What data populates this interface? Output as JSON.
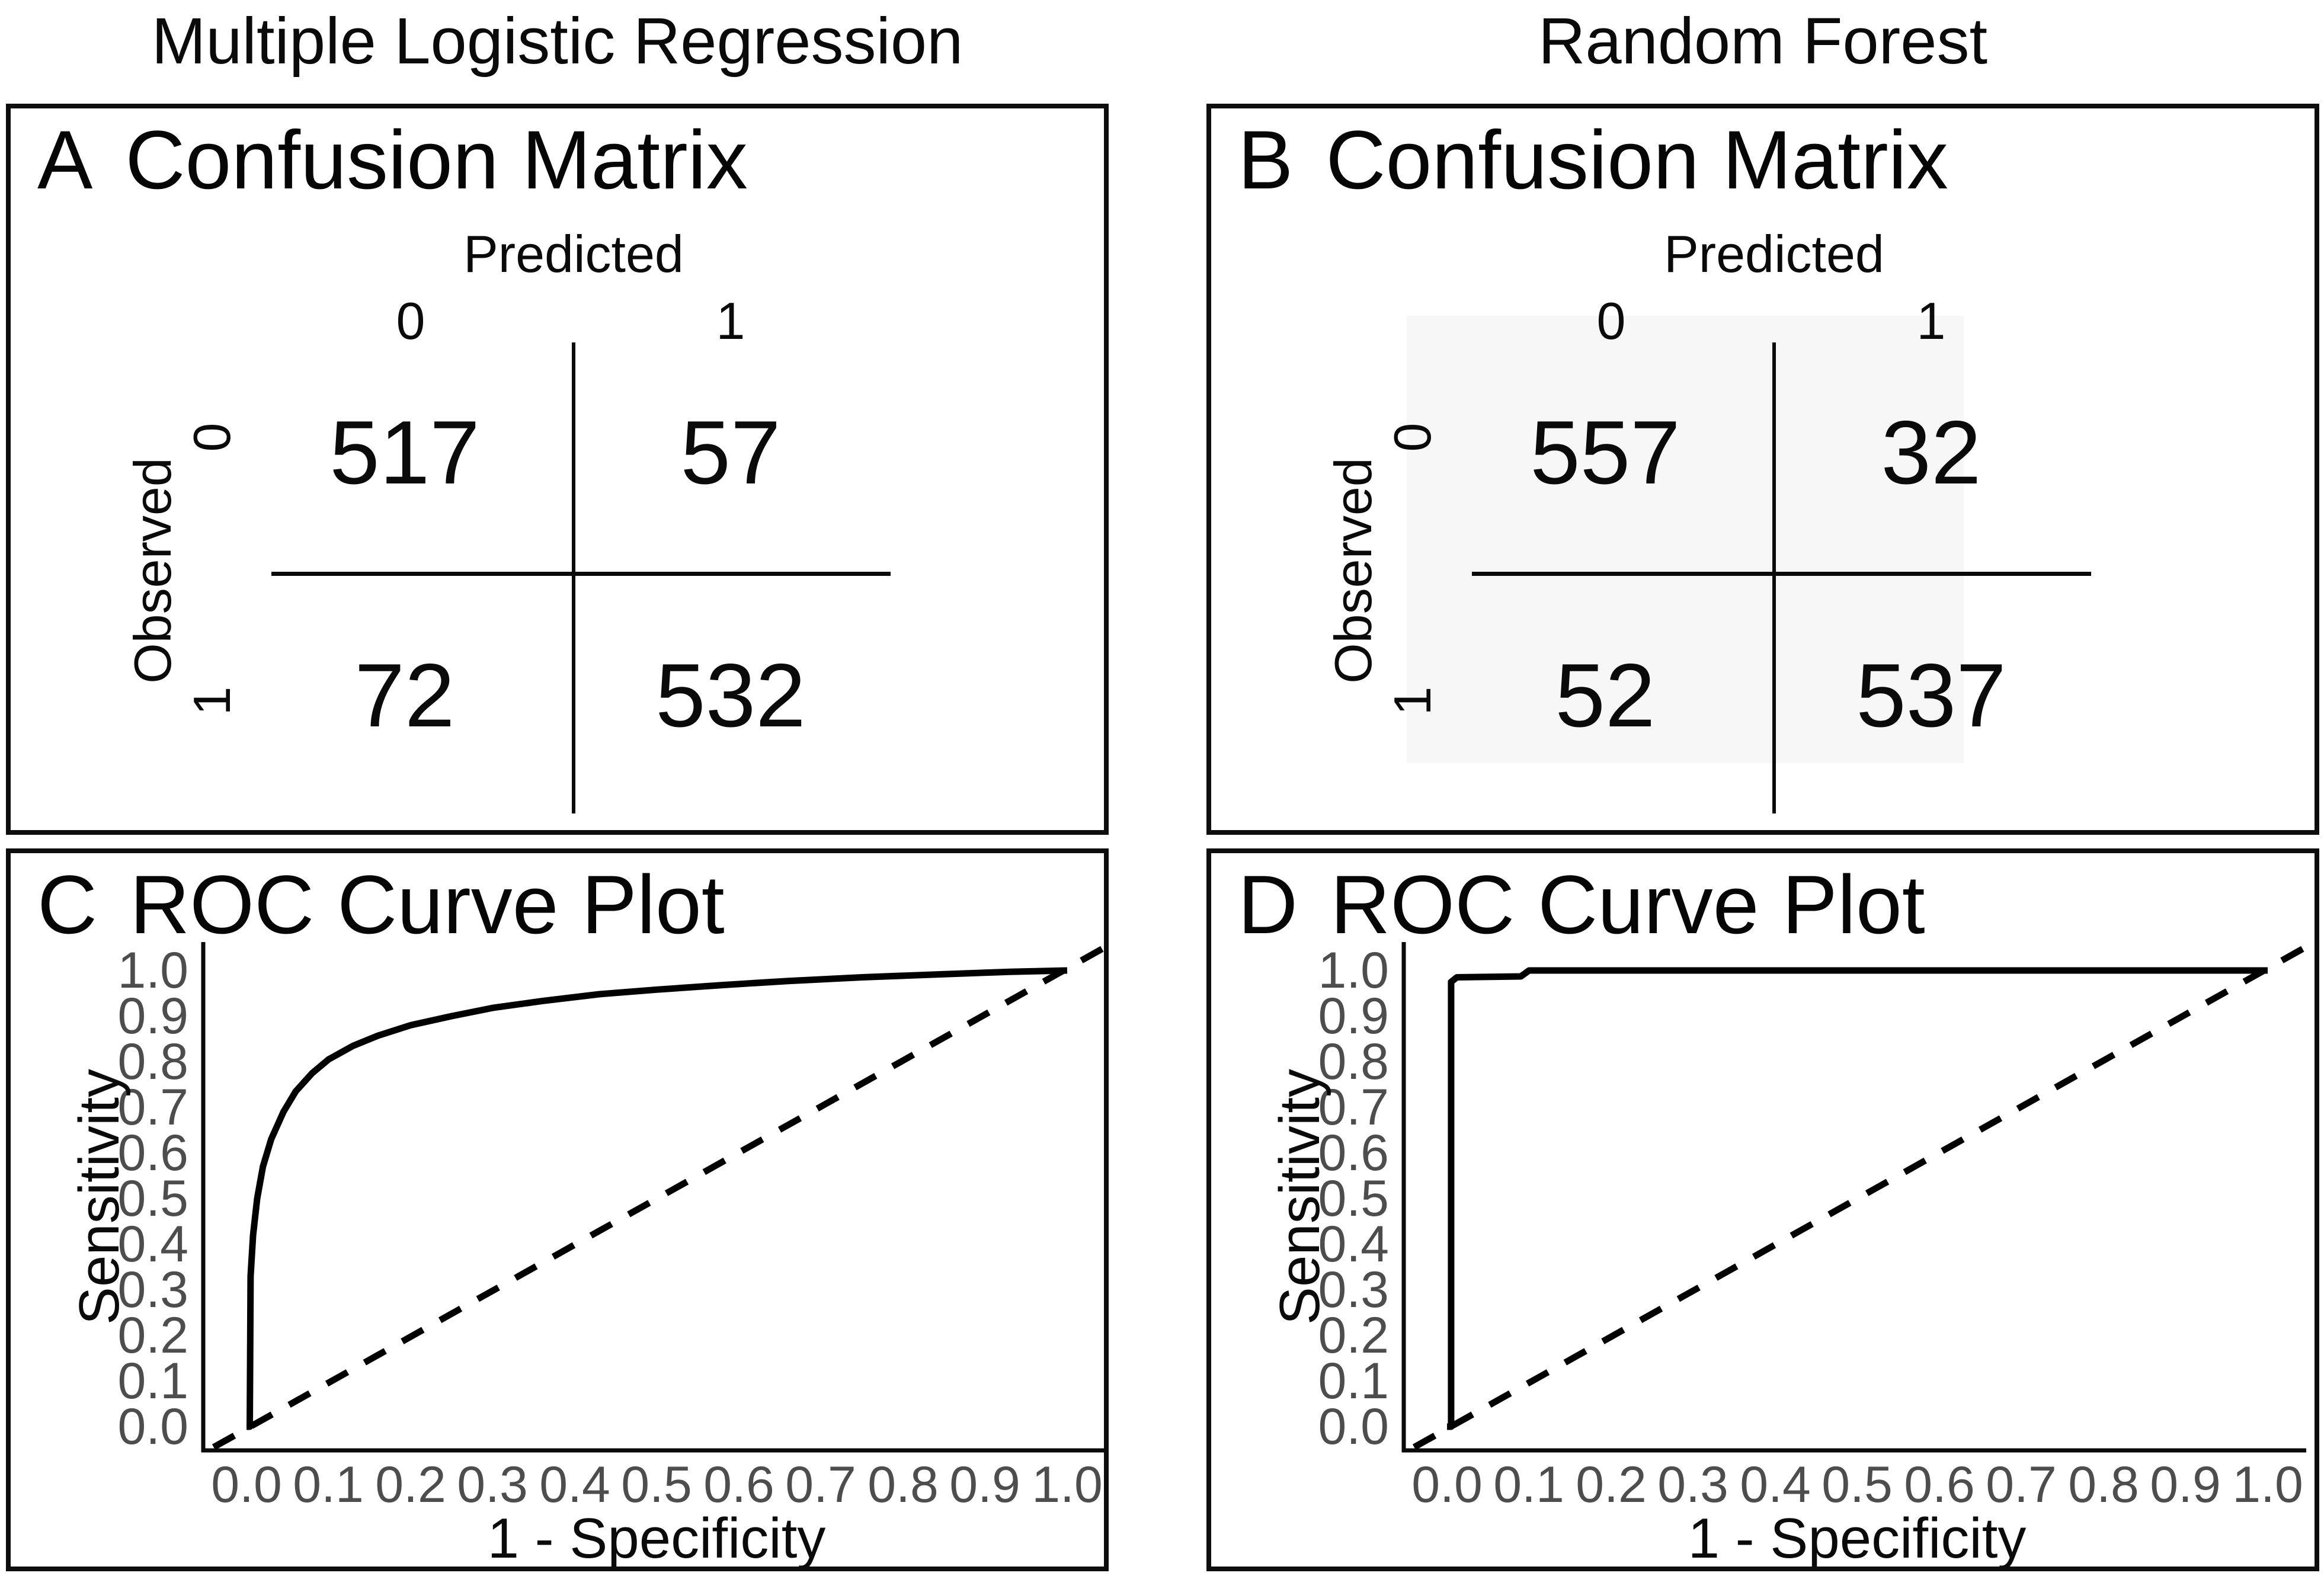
{
  "header": {
    "left_title": "Multiple Logistic Regression",
    "right_title": "Random Forest"
  },
  "confusion_a": {
    "panel_letter": "A",
    "panel_title": "Confusion Matrix",
    "predicted_label": "Predicted",
    "observed_label": "Observed",
    "predicted_col_labels": [
      "0",
      "1"
    ],
    "observed_row_labels": [
      "0",
      "1"
    ],
    "cells": [
      [
        "517",
        "57"
      ],
      [
        "72",
        "532"
      ]
    ]
  },
  "confusion_b": {
    "panel_letter": "B",
    "panel_title": "Confusion Matrix",
    "predicted_label": "Predicted",
    "observed_label": "Observed",
    "predicted_col_labels": [
      "0",
      "1"
    ],
    "observed_row_labels": [
      "0",
      "1"
    ],
    "cells": [
      [
        "557",
        "32"
      ],
      [
        "52",
        "537"
      ]
    ]
  },
  "roc_c": {
    "panel_letter": "C",
    "panel_title": "ROC Curve Plot",
    "xlabel": "1 - Specificity",
    "ylabel": "Sensitivity",
    "x_tick_labels": [
      "0.0",
      "0.1",
      "0.2",
      "0.3",
      "0.4",
      "0.5",
      "0.6",
      "0.7",
      "0.8",
      "0.9",
      "1.0"
    ],
    "y_tick_labels": [
      "1.0",
      "0.9",
      "0.8",
      "0.7",
      "0.6",
      "0.5",
      "0.4",
      "0.3",
      "0.2",
      "0.1",
      "0.0"
    ]
  },
  "roc_d": {
    "panel_letter": "D",
    "panel_title": "ROC Curve Plot",
    "xlabel": "1 - Specificity",
    "ylabel": "Sensitivity",
    "x_tick_labels": [
      "0.0",
      "0.1",
      "0.2",
      "0.3",
      "0.4",
      "0.5",
      "0.6",
      "0.7",
      "0.8",
      "0.9",
      "1.0"
    ],
    "y_tick_labels": [
      "1.0",
      "0.9",
      "0.8",
      "0.7",
      "0.6",
      "0.5",
      "0.4",
      "0.3",
      "0.2",
      "0.1",
      "0.0"
    ]
  },
  "colors": {
    "ink": "#000000",
    "tick_gray": "#4d4d4d",
    "panel_border": "#0d0d0d",
    "shading": "#f7f7f7"
  },
  "chart_data": [
    {
      "type": "table",
      "panel": "A",
      "model": "Multiple Logistic Regression",
      "title": "Confusion Matrix",
      "row_axis": "Observed",
      "col_axis": "Predicted",
      "row_labels": [
        "0",
        "1"
      ],
      "col_labels": [
        "0",
        "1"
      ],
      "values": [
        [
          517,
          57
        ],
        [
          72,
          532
        ]
      ]
    },
    {
      "type": "table",
      "panel": "B",
      "model": "Random Forest",
      "title": "Confusion Matrix",
      "row_axis": "Observed",
      "col_axis": "Predicted",
      "row_labels": [
        "0",
        "1"
      ],
      "col_labels": [
        "0",
        "1"
      ],
      "values": [
        [
          557,
          32
        ],
        [
          52,
          537
        ]
      ]
    },
    {
      "type": "line",
      "panel": "C",
      "model": "Multiple Logistic Regression",
      "title": "ROC Curve Plot",
      "xlabel": "1 - Specificity",
      "ylabel": "Sensitivity",
      "xlim": [
        0,
        1
      ],
      "ylim": [
        0,
        1
      ],
      "x_ticks": [
        0,
        0.1,
        0.2,
        0.3,
        0.4,
        0.5,
        0.6,
        0.7,
        0.8,
        0.9,
        1.0
      ],
      "y_ticks": [
        0,
        0.1,
        0.2,
        0.3,
        0.4,
        0.5,
        0.6,
        0.7,
        0.8,
        0.9,
        1.0
      ],
      "grid": false,
      "legend": null,
      "series": [
        {
          "name": "ROC curve",
          "line_style": "solid",
          "points": [
            [
              0,
              0
            ],
            [
              0.004,
              0
            ],
            [
              0.005,
              0.33
            ],
            [
              0.008,
              0.42
            ],
            [
              0.013,
              0.5
            ],
            [
              0.02,
              0.57
            ],
            [
              0.03,
              0.63
            ],
            [
              0.045,
              0.69
            ],
            [
              0.06,
              0.735
            ],
            [
              0.08,
              0.775
            ],
            [
              0.1,
              0.805
            ],
            [
              0.13,
              0.835
            ],
            [
              0.16,
              0.857
            ],
            [
              0.2,
              0.88
            ],
            [
              0.25,
              0.9
            ],
            [
              0.3,
              0.918
            ],
            [
              0.36,
              0.933
            ],
            [
              0.43,
              0.948
            ],
            [
              0.5,
              0.958
            ],
            [
              0.58,
              0.968
            ],
            [
              0.66,
              0.977
            ],
            [
              0.75,
              0.985
            ],
            [
              0.85,
              0.992
            ],
            [
              0.93,
              0.997
            ],
            [
              1.0,
              1.0
            ]
          ]
        },
        {
          "name": "Reference diagonal",
          "line_style": "dashed",
          "points": [
            [
              -0.04,
              -0.045
            ],
            [
              1.055,
              1.06
            ]
          ]
        }
      ]
    },
    {
      "type": "line",
      "panel": "D",
      "model": "Random Forest",
      "title": "ROC Curve Plot",
      "xlabel": "1 - Specificity",
      "ylabel": "Sensitivity",
      "xlim": [
        0,
        1
      ],
      "ylim": [
        0,
        1
      ],
      "x_ticks": [
        0,
        0.1,
        0.2,
        0.3,
        0.4,
        0.5,
        0.6,
        0.7,
        0.8,
        0.9,
        1.0
      ],
      "y_ticks": [
        0,
        0.1,
        0.2,
        0.3,
        0.4,
        0.5,
        0.6,
        0.7,
        0.8,
        0.9,
        1.0
      ],
      "grid": false,
      "legend": null,
      "series": [
        {
          "name": "ROC curve",
          "line_style": "solid",
          "points": [
            [
              0,
              0
            ],
            [
              0.005,
              0
            ],
            [
              0.005,
              0.975
            ],
            [
              0.012,
              0.985
            ],
            [
              0.09,
              0.987
            ],
            [
              0.1,
              1.0
            ],
            [
              1.0,
              1.0
            ]
          ]
        },
        {
          "name": "Reference diagonal",
          "line_style": "dashed",
          "points": [
            [
              -0.04,
              -0.045
            ],
            [
              1.055,
              1.06
            ]
          ]
        }
      ]
    }
  ]
}
